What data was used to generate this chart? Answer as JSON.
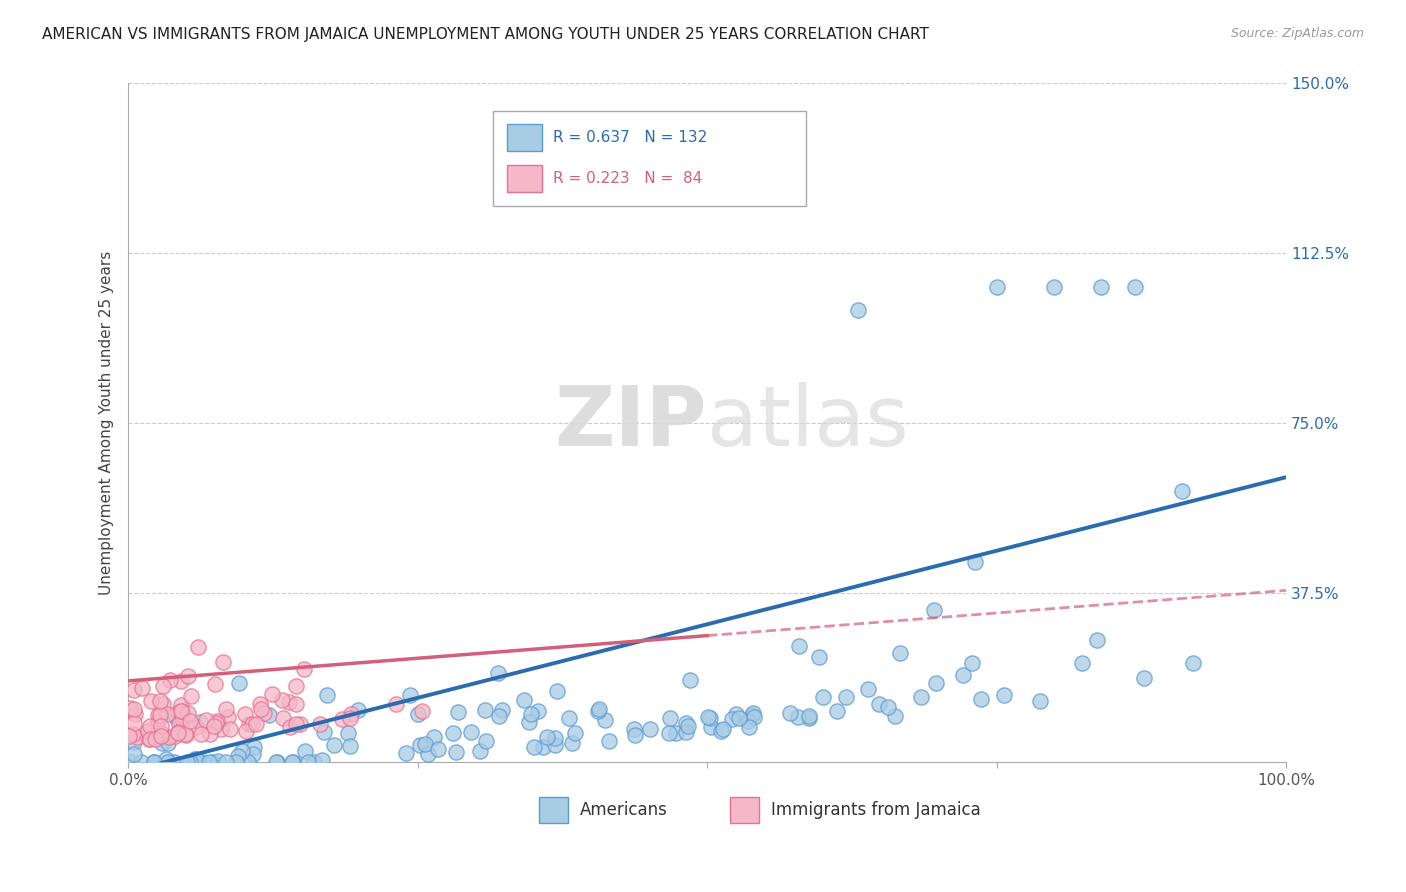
{
  "title": "AMERICAN VS IMMIGRANTS FROM JAMAICA UNEMPLOYMENT AMONG YOUTH UNDER 25 YEARS CORRELATION CHART",
  "source": "Source: ZipAtlas.com",
  "ylabel": "Unemployment Among Youth under 25 years",
  "xlim": [
    0,
    1.0
  ],
  "ylim": [
    0,
    1.5
  ],
  "yticks": [
    0.0,
    0.375,
    0.75,
    1.125,
    1.5
  ],
  "yticklabels": [
    "",
    "37.5%",
    "75.0%",
    "112.5%",
    "150.0%"
  ],
  "watermark": "ZIPatlas",
  "blue_color": "#a8cce4",
  "blue_edge_color": "#5b9bd5",
  "pink_color": "#f4b8c8",
  "pink_edge_color": "#e87090",
  "blue_line_color": "#2b6cb0",
  "pink_line_color": "#d45f7a",
  "legend_blue_text_color": "#2b6cb0",
  "legend_pink_text_color": "#d45f7a",
  "R_blue": 0.637,
  "N_blue": 132,
  "R_pink": 0.223,
  "N_pink": 84,
  "seed": 42,
  "blue_trendline_x0": 0.0,
  "blue_trendline_y0": -0.02,
  "blue_trendline_x1": 1.0,
  "blue_trendline_y1": 0.63,
  "pink_trendline_x0": 0.0,
  "pink_trendline_y0": 0.18,
  "pink_trendline_x1": 0.5,
  "pink_trendline_y1": 0.28
}
